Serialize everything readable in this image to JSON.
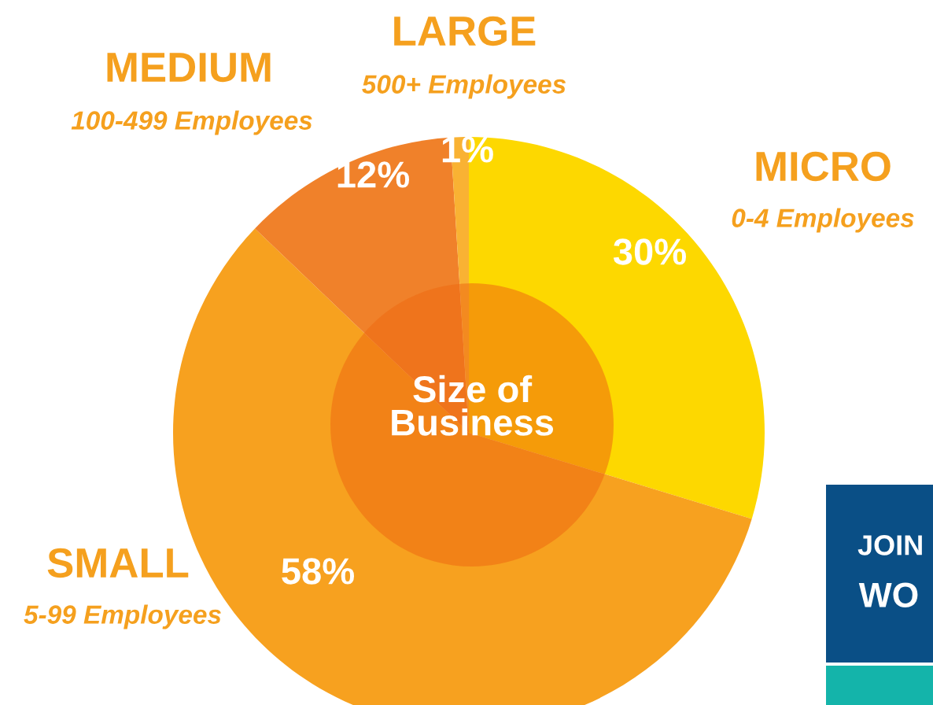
{
  "chart_data": {
    "type": "pie",
    "title": "Size of\nBusiness",
    "categories": [
      "MICRO",
      "SMALL",
      "MEDIUM",
      "LARGE"
    ],
    "values": [
      30,
      58,
      12,
      1
    ],
    "value_labels": [
      "30%",
      "58%",
      "12%",
      "1%"
    ],
    "colors": [
      "#fdd800",
      "#f7a11f",
      "#f0812a",
      "#f9b233"
    ],
    "annotations": [
      "0-4 Employees",
      "5-99 Employees",
      "100-499 Employees",
      "500+ Employees",
      "JOIN",
      "WO"
    ],
    "legend": false
  }
}
